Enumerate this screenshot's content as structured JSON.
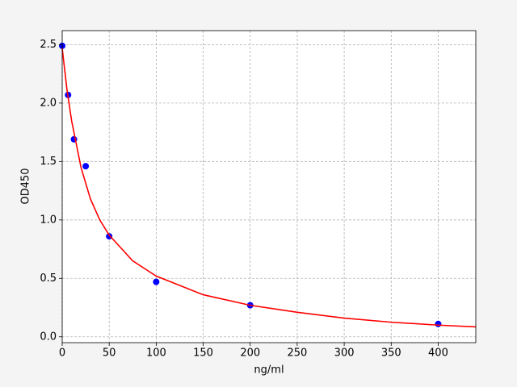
{
  "chart_data": {
    "type": "scatter",
    "xlabel": "ng/ml",
    "ylabel": "OD450",
    "xlim": [
      0,
      440
    ],
    "ylim": [
      -0.05,
      2.62
    ],
    "xticks": [
      0,
      50,
      100,
      150,
      200,
      250,
      300,
      350,
      400
    ],
    "yticks": [
      {
        "value": 0,
        "label": "0.0"
      },
      0.5,
      {
        "value": 1,
        "label": "1.0"
      },
      1.5,
      {
        "value": 2,
        "label": "2.0"
      },
      2.5
    ],
    "grid": true,
    "series": [
      {
        "mode": "markers",
        "color": "#0000ff",
        "x": [
          0,
          6.25,
          12.5,
          25,
          50,
          100,
          200,
          400
        ],
        "values": [
          2.49,
          2.07,
          1.69,
          1.46,
          0.86,
          0.47,
          0.27,
          0.11
        ]
      },
      {
        "mode": "line",
        "color": "#ff0000",
        "x": [
          0,
          5,
          10,
          20,
          30,
          40,
          50,
          75,
          100,
          150,
          200,
          250,
          300,
          350,
          400,
          440
        ],
        "values": [
          2.47,
          2.12,
          1.85,
          1.45,
          1.18,
          1.0,
          0.87,
          0.65,
          0.52,
          0.36,
          0.27,
          0.21,
          0.16,
          0.125,
          0.1,
          0.085
        ]
      }
    ]
  }
}
